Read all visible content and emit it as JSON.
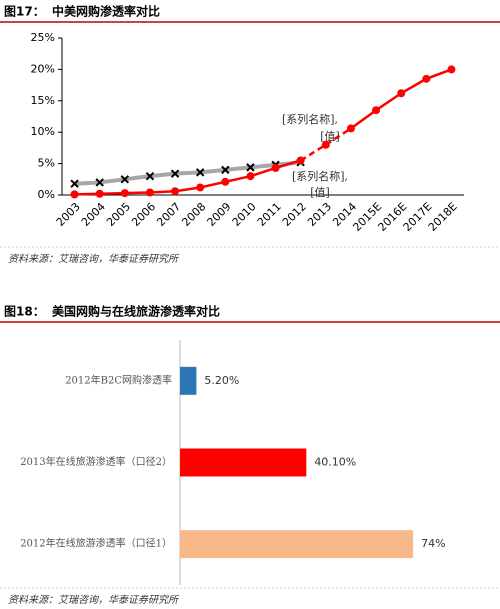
{
  "chart_data": [
    {
      "type": "line",
      "label": "图17：",
      "title": "中美网购渗透率对比",
      "source": "资料来源：艾瑞咨询，华泰证券研究所",
      "categories": [
        "2003",
        "2004",
        "2005",
        "2006",
        "2007",
        "2008",
        "2009",
        "2010",
        "2011",
        "2012",
        "2013",
        "2014",
        "2015E",
        "2016E",
        "2017E",
        "2018E"
      ],
      "series": [
        {
          "color": "#a6a6a6",
          "marker_color": "#000000",
          "marker": "x",
          "values": [
            1.8,
            2.0,
            2.5,
            3.0,
            3.4,
            3.6,
            4.0,
            4.4,
            4.8,
            5.2,
            null,
            null,
            null,
            null,
            null,
            null
          ]
        },
        {
          "color": "#ff0000",
          "marker_color": "#ff0000",
          "marker": "circle",
          "values": [
            0.1,
            0.2,
            0.3,
            0.4,
            0.6,
            1.2,
            2.1,
            3.0,
            4.3,
            5.5,
            8.0,
            10.6,
            13.5,
            16.2,
            18.5,
            20.0
          ],
          "dash_range": [
            "2012",
            "2014"
          ]
        }
      ],
      "ylim": [
        0,
        25
      ],
      "yticks": [
        {
          "value": 0,
          "label": "0%"
        },
        {
          "value": 5,
          "label": "5%"
        },
        {
          "value": 10,
          "label": "10%"
        },
        {
          "value": 15,
          "label": "15%"
        },
        {
          "value": 20,
          "label": "20%"
        },
        {
          "value": 25,
          "label": "25%"
        }
      ],
      "annotations": [
        "[系列名称],",
        "[值]",
        "[系列名称],",
        "[值]"
      ]
    },
    {
      "type": "hbar",
      "label": "图18：",
      "title": "美国网购与在线旅游渗透率对比",
      "source": "资料来源：艾瑞咨询，华泰证券研究所",
      "categories": [
        "2012年B2C网购渗透率",
        "2013年在线旅游渗透率（口径2）",
        "2012年在线旅游渗透率（口径1）"
      ],
      "values": [
        5.2,
        40.1,
        74
      ],
      "value_labels": [
        "5.20%",
        "40.10%",
        "74%"
      ],
      "colors": [
        "#2e75b6",
        "#ff0000",
        "#f8b98a"
      ],
      "xlim": [
        0,
        100
      ]
    }
  ]
}
